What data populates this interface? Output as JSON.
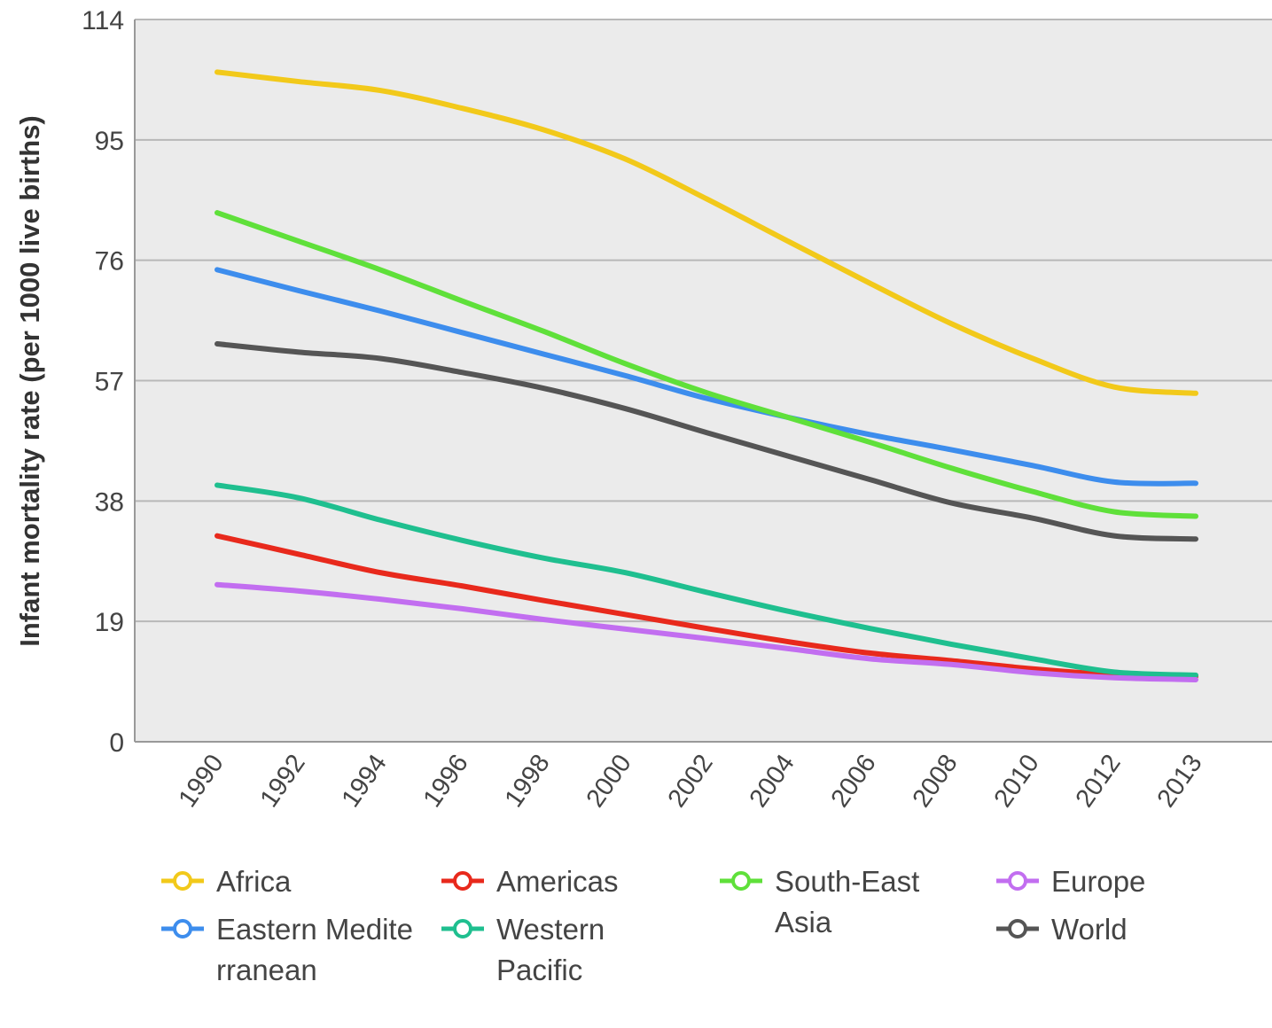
{
  "chart_data": {
    "type": "line",
    "title": "",
    "xlabel": "",
    "ylabel": "Infant mortality rate (per 1000 live births)",
    "ylim": [
      0,
      114
    ],
    "yticks": [
      "0",
      "19",
      "38",
      "57",
      "76",
      "95",
      "114"
    ],
    "grid": true,
    "legend_position": "bottom",
    "categories": [
      "1990",
      "1992",
      "1994",
      "1996",
      "1998",
      "2000",
      "2002",
      "2004",
      "2006",
      "2008",
      "2010",
      "2012",
      "2013"
    ],
    "series": [
      {
        "name": "Africa",
        "color": "#f2c91a",
        "values": [
          105.7,
          104.2,
          102.8,
          100.0,
          96.6,
          92.0,
          85.7,
          79.0,
          72.4,
          66.0,
          60.5,
          56.0,
          55.0
        ]
      },
      {
        "name": "Eastern Mediterranean",
        "color": "#3d8ded",
        "values": [
          74.5,
          71.2,
          68.0,
          64.6,
          61.2,
          57.8,
          54.2,
          51.2,
          48.5,
          46.1,
          43.6,
          41.0,
          40.8
        ]
      },
      {
        "name": "Americas",
        "color": "#e8291c",
        "values": [
          32.5,
          29.6,
          26.7,
          24.6,
          22.3,
          20.1,
          17.9,
          15.8,
          14.0,
          12.8,
          11.5,
          10.6,
          10.3
        ]
      },
      {
        "name": "Western Pacific",
        "color": "#1fbf8f",
        "values": [
          40.5,
          38.5,
          35.0,
          31.8,
          29.0,
          26.7,
          23.6,
          20.6,
          17.9,
          15.4,
          13.1,
          11.0,
          10.5
        ]
      },
      {
        "name": "South-East Asia",
        "color": "#5fe03a",
        "values": [
          83.5,
          79.0,
          74.5,
          69.6,
          64.8,
          59.7,
          55.1,
          51.2,
          47.3,
          43.2,
          39.5,
          36.3,
          35.6
        ]
      },
      {
        "name": "Europe",
        "color": "#c26ef0",
        "values": [
          24.8,
          23.8,
          22.5,
          21.0,
          19.3,
          17.8,
          16.3,
          14.7,
          13.1,
          12.2,
          10.9,
          10.1,
          9.8
        ]
      },
      {
        "name": "World",
        "color": "#555555",
        "values": [
          62.8,
          61.5,
          60.5,
          58.3,
          55.8,
          52.6,
          48.8,
          45.1,
          41.4,
          37.7,
          35.3,
          32.5,
          32.0
        ]
      }
    ]
  }
}
